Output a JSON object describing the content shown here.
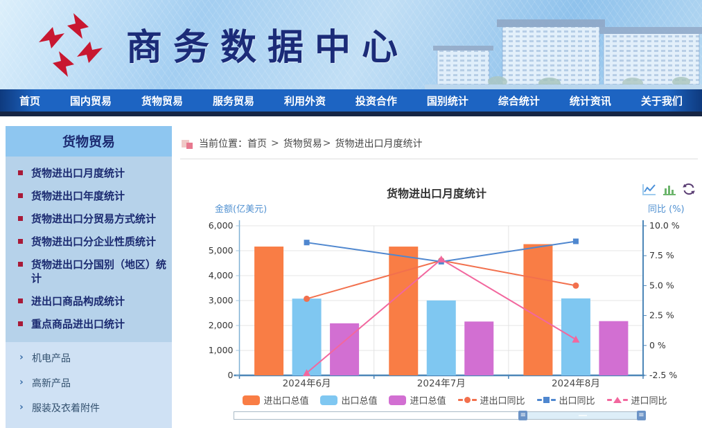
{
  "header": {
    "site_title": "商务数据中心"
  },
  "nav": {
    "items": [
      "首页",
      "国内贸易",
      "货物贸易",
      "服务贸易",
      "利用外资",
      "投资合作",
      "国别统计",
      "综合统计",
      "统计资讯",
      "关于我们"
    ]
  },
  "sidebar": {
    "title": "货物贸易",
    "items": [
      "货物进出口月度统计",
      "货物进出口年度统计",
      "货物进出口分贸易方式统计",
      "货物进出口分企业性质统计",
      "货物进出口分国别（地区）统计",
      "进出口商品构成统计",
      "重点商品进出口统计"
    ],
    "sub_items": [
      "机电产品",
      "高新产品",
      "服装及衣着附件"
    ]
  },
  "breadcrumb": {
    "prefix": "当前位置：",
    "home": "首页",
    "sep1": ">",
    "section": "货物贸易",
    "sep2": ">",
    "current": "货物进出口月度统计"
  },
  "chart": {
    "title": "货物进出口月度统计",
    "tool_icons": [
      "line-chart",
      "bar-chart",
      "refresh"
    ]
  },
  "chart_data": {
    "type": "bar+line",
    "title": "货物进出口月度统计",
    "categories": [
      "2024年6月",
      "2024年7月",
      "2024年8月"
    ],
    "left_axis": {
      "name": "金额(亿美元)",
      "min": 0,
      "max": 6000,
      "tick_step": 1000,
      "tick_labels": [
        "0",
        "1,000",
        "2,000",
        "3,000",
        "4,000",
        "5,000",
        "6,000"
      ]
    },
    "right_axis": {
      "name": "同比 (%)",
      "min": -2.5,
      "max": 10,
      "tick_step": 2.5,
      "tick_labels": [
        "-2.5 %",
        "0 %",
        "2.5 %",
        "5.0 %",
        "7.5 %",
        "10.0 %"
      ]
    },
    "bar_series": [
      {
        "name": "进出口总值",
        "color": "#f97d45",
        "values": [
          5166,
          5165,
          5263
        ]
      },
      {
        "name": "出口总值",
        "color": "#7fc7f1",
        "values": [
          3078,
          3006,
          3087
        ]
      },
      {
        "name": "进口总值",
        "color": "#d26fd2",
        "values": [
          2088,
          2159,
          2176
        ]
      }
    ],
    "line_series": [
      {
        "name": "进出口同比",
        "color": "#f2704d",
        "marker": "circle",
        "values": [
          3.9,
          7.1,
          5.0
        ]
      },
      {
        "name": "出口同比",
        "color": "#4f87cf",
        "marker": "square",
        "values": [
          8.6,
          7.0,
          8.7
        ]
      },
      {
        "name": "进口同比",
        "color": "#f2679e",
        "marker": "triangle",
        "values": [
          -2.3,
          7.2,
          0.5
        ]
      }
    ],
    "legend_position": "bottom",
    "grid": true
  },
  "datazoom": {
    "selected_start_pct": 70.5,
    "selected_end_pct": 100,
    "handle_glyph": "≡"
  }
}
